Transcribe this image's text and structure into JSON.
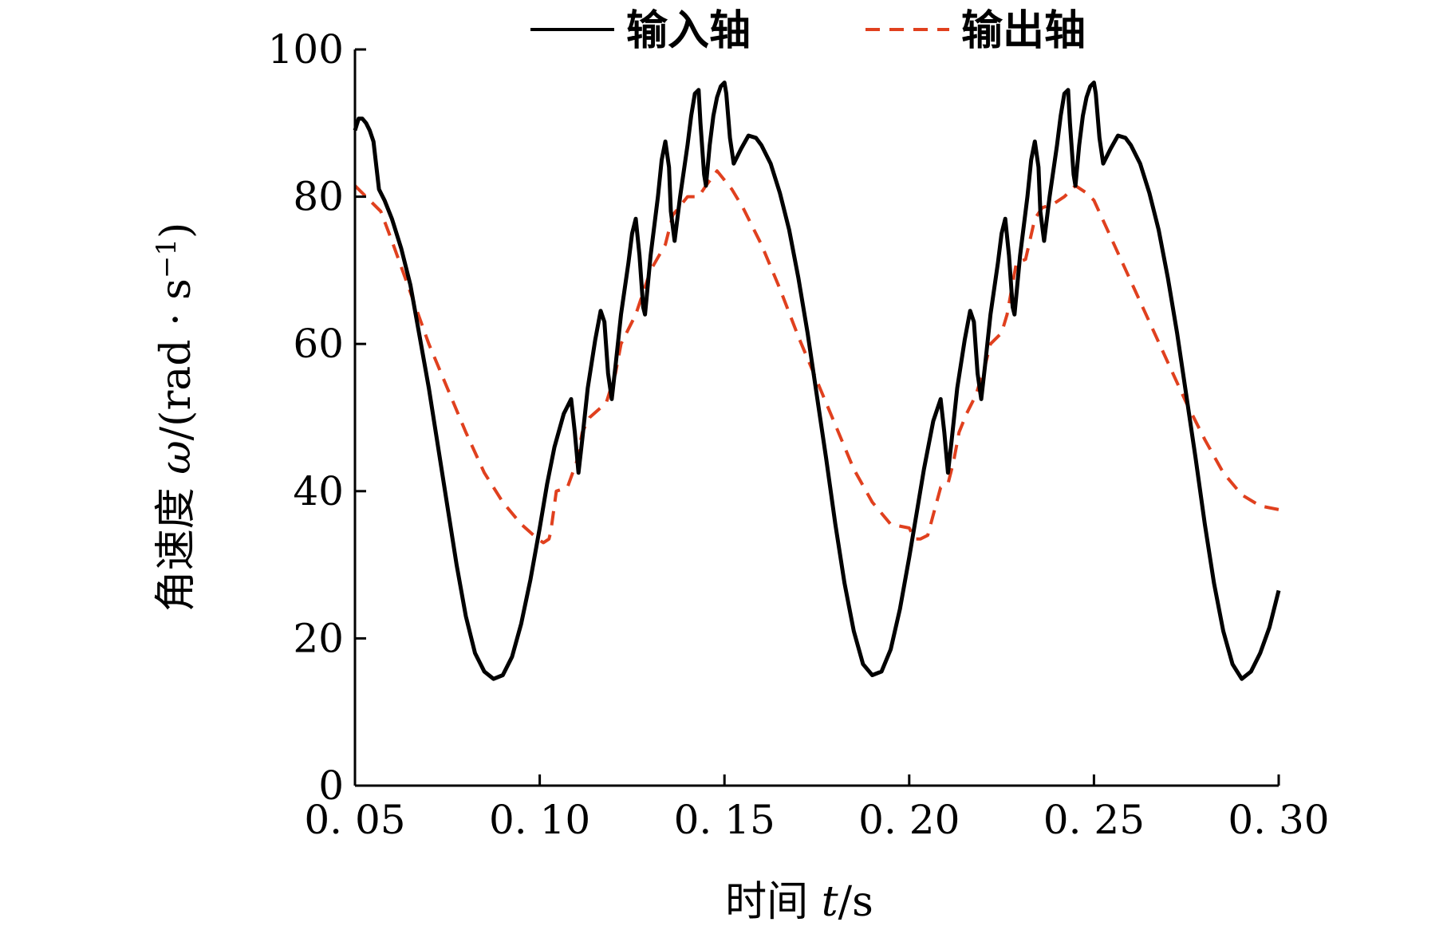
{
  "chart_data": {
    "type": "line",
    "xlabel_prefix": "时间 ",
    "xlabel_var": "t",
    "xlabel_unit": "/s",
    "ylabel_prefix": "角速度 ",
    "ylabel_var": "ω",
    "ylabel_unit": "/(rad · s",
    "ylabel_sup": "−1",
    "ylabel_close": ")",
    "xlim": [
      0.05,
      0.3
    ],
    "ylim": [
      0,
      100
    ],
    "x_ticks": [
      0.05,
      0.1,
      0.15,
      0.2,
      0.25,
      0.3
    ],
    "x_tick_labels": [
      "0. 05",
      "0. 10",
      "0. 15",
      "0. 20",
      "0. 25",
      "0. 30"
    ],
    "y_ticks": [
      0,
      20,
      40,
      60,
      80,
      100
    ],
    "y_tick_labels": [
      "0",
      "20",
      "40",
      "60",
      "80",
      "100"
    ],
    "legend_position": "top-center",
    "series": [
      {
        "name": "输入轴",
        "color": "#000000",
        "style": "solid",
        "points": [
          [
            0.05,
            89.0
          ],
          [
            0.051,
            90.6
          ],
          [
            0.052,
            90.6
          ],
          [
            0.053,
            90.0
          ],
          [
            0.054,
            89.0
          ],
          [
            0.055,
            87.5
          ],
          [
            0.0565,
            81.0
          ],
          [
            0.058,
            79.5
          ],
          [
            0.06,
            77.0
          ],
          [
            0.0625,
            73.0
          ],
          [
            0.065,
            68.0
          ],
          [
            0.0675,
            61.0
          ],
          [
            0.07,
            54.0
          ],
          [
            0.0725,
            46.0
          ],
          [
            0.075,
            38.0
          ],
          [
            0.0775,
            30.0
          ],
          [
            0.08,
            23.0
          ],
          [
            0.0825,
            18.0
          ],
          [
            0.085,
            15.5
          ],
          [
            0.0875,
            14.5
          ],
          [
            0.09,
            15.0
          ],
          [
            0.0925,
            17.5
          ],
          [
            0.095,
            22.0
          ],
          [
            0.0975,
            28.0
          ],
          [
            0.1,
            35.0
          ],
          [
            0.102,
            41.0
          ],
          [
            0.104,
            46.0
          ],
          [
            0.1065,
            50.5
          ],
          [
            0.1085,
            52.5
          ],
          [
            0.1095,
            48.0
          ],
          [
            0.1105,
            42.5
          ],
          [
            0.1115,
            47.0
          ],
          [
            0.113,
            54.0
          ],
          [
            0.115,
            60.5
          ],
          [
            0.1165,
            64.5
          ],
          [
            0.1175,
            63.0
          ],
          [
            0.1185,
            56.0
          ],
          [
            0.1195,
            52.5
          ],
          [
            0.1205,
            57.0
          ],
          [
            0.122,
            64.0
          ],
          [
            0.124,
            71.0
          ],
          [
            0.125,
            75.0
          ],
          [
            0.126,
            77.0
          ],
          [
            0.127,
            72.0
          ],
          [
            0.128,
            65.0
          ],
          [
            0.1285,
            64.0
          ],
          [
            0.13,
            72.0
          ],
          [
            0.132,
            80.0
          ],
          [
            0.133,
            85.0
          ],
          [
            0.134,
            87.5
          ],
          [
            0.135,
            84.0
          ],
          [
            0.1355,
            78.0
          ],
          [
            0.1365,
            74.0
          ],
          [
            0.138,
            80.0
          ],
          [
            0.14,
            87.0
          ],
          [
            0.141,
            91.0
          ],
          [
            0.142,
            94.0
          ],
          [
            0.143,
            94.5
          ],
          [
            0.1435,
            90.0
          ],
          [
            0.1445,
            83.0
          ],
          [
            0.145,
            81.5
          ],
          [
            0.146,
            87.0
          ],
          [
            0.147,
            91.0
          ],
          [
            0.148,
            93.5
          ],
          [
            0.149,
            95.0
          ],
          [
            0.15,
            95.5
          ],
          [
            0.1505,
            94.0
          ],
          [
            0.1515,
            88.0
          ],
          [
            0.1525,
            84.5
          ],
          [
            0.1545,
            86.5
          ],
          [
            0.1565,
            88.3
          ],
          [
            0.1585,
            88.0
          ],
          [
            0.16,
            87.0
          ],
          [
            0.1625,
            84.5
          ],
          [
            0.165,
            80.5
          ],
          [
            0.1675,
            75.5
          ],
          [
            0.17,
            69.0
          ],
          [
            0.1725,
            61.5
          ],
          [
            0.175,
            53.0
          ],
          [
            0.1775,
            44.5
          ],
          [
            0.18,
            35.5
          ],
          [
            0.1825,
            27.5
          ],
          [
            0.185,
            21.0
          ],
          [
            0.1875,
            16.5
          ],
          [
            0.19,
            15.0
          ],
          [
            0.1925,
            15.5
          ],
          [
            0.195,
            18.5
          ],
          [
            0.1975,
            24.0
          ],
          [
            0.2,
            31.0
          ],
          [
            0.202,
            37.0
          ],
          [
            0.204,
            43.0
          ],
          [
            0.2065,
            49.5
          ],
          [
            0.2085,
            52.5
          ],
          [
            0.2095,
            48.0
          ],
          [
            0.2105,
            42.5
          ],
          [
            0.2115,
            47.0
          ],
          [
            0.213,
            54.0
          ],
          [
            0.215,
            60.5
          ],
          [
            0.2165,
            64.5
          ],
          [
            0.2175,
            63.0
          ],
          [
            0.2185,
            56.0
          ],
          [
            0.2195,
            52.5
          ],
          [
            0.2205,
            57.0
          ],
          [
            0.222,
            64.0
          ],
          [
            0.224,
            71.0
          ],
          [
            0.225,
            75.0
          ],
          [
            0.226,
            77.0
          ],
          [
            0.227,
            72.0
          ],
          [
            0.228,
            65.0
          ],
          [
            0.2285,
            64.0
          ],
          [
            0.23,
            72.0
          ],
          [
            0.232,
            80.0
          ],
          [
            0.233,
            85.0
          ],
          [
            0.234,
            87.5
          ],
          [
            0.235,
            84.0
          ],
          [
            0.2355,
            78.0
          ],
          [
            0.2365,
            74.0
          ],
          [
            0.238,
            80.0
          ],
          [
            0.24,
            87.0
          ],
          [
            0.241,
            91.0
          ],
          [
            0.242,
            94.0
          ],
          [
            0.243,
            94.5
          ],
          [
            0.2435,
            90.0
          ],
          [
            0.2445,
            83.0
          ],
          [
            0.245,
            81.5
          ],
          [
            0.246,
            87.0
          ],
          [
            0.247,
            91.0
          ],
          [
            0.248,
            93.5
          ],
          [
            0.249,
            95.0
          ],
          [
            0.25,
            95.5
          ],
          [
            0.2505,
            94.0
          ],
          [
            0.2515,
            88.0
          ],
          [
            0.2525,
            84.5
          ],
          [
            0.2545,
            86.5
          ],
          [
            0.2565,
            88.3
          ],
          [
            0.2585,
            88.0
          ],
          [
            0.26,
            87.0
          ],
          [
            0.2625,
            84.5
          ],
          [
            0.265,
            80.5
          ],
          [
            0.2675,
            75.5
          ],
          [
            0.27,
            69.0
          ],
          [
            0.2725,
            61.5
          ],
          [
            0.275,
            53.0
          ],
          [
            0.2775,
            44.5
          ],
          [
            0.28,
            35.5
          ],
          [
            0.2825,
            27.5
          ],
          [
            0.285,
            21.0
          ],
          [
            0.2875,
            16.5
          ],
          [
            0.29,
            14.5
          ],
          [
            0.2925,
            15.5
          ],
          [
            0.295,
            18.0
          ],
          [
            0.2975,
            21.5
          ],
          [
            0.3,
            26.5
          ]
        ]
      },
      {
        "name": "输出轴",
        "color": "#e0401e",
        "style": "dashed",
        "points": [
          [
            0.05,
            81.5
          ],
          [
            0.053,
            80.0
          ],
          [
            0.057,
            78.0
          ],
          [
            0.06,
            74.0
          ],
          [
            0.065,
            67.0
          ],
          [
            0.07,
            60.0
          ],
          [
            0.075,
            54.0
          ],
          [
            0.08,
            48.0
          ],
          [
            0.085,
            42.5
          ],
          [
            0.09,
            38.5
          ],
          [
            0.095,
            35.5
          ],
          [
            0.0995,
            33.5
          ],
          [
            0.101,
            33.0
          ],
          [
            0.1025,
            33.5
          ],
          [
            0.103,
            34.5
          ],
          [
            0.1045,
            40.0
          ],
          [
            0.1075,
            40.5
          ],
          [
            0.11,
            44.0
          ],
          [
            0.1115,
            48.0
          ],
          [
            0.1135,
            50.0
          ],
          [
            0.118,
            52.0
          ],
          [
            0.1205,
            56.0
          ],
          [
            0.122,
            60.0
          ],
          [
            0.126,
            64.0
          ],
          [
            0.13,
            70.0
          ],
          [
            0.134,
            73.5
          ],
          [
            0.136,
            77.5
          ],
          [
            0.14,
            80.0
          ],
          [
            0.143,
            80.0
          ],
          [
            0.145,
            81.5
          ],
          [
            0.148,
            83.5
          ],
          [
            0.152,
            81.0
          ],
          [
            0.155,
            78.5
          ],
          [
            0.16,
            73.5
          ],
          [
            0.165,
            67.5
          ],
          [
            0.17,
            61.0
          ],
          [
            0.175,
            55.0
          ],
          [
            0.18,
            49.0
          ],
          [
            0.185,
            43.0
          ],
          [
            0.19,
            38.5
          ],
          [
            0.195,
            35.5
          ],
          [
            0.2,
            35.0
          ],
          [
            0.2015,
            33.5
          ],
          [
            0.203,
            33.5
          ],
          [
            0.205,
            34.0
          ],
          [
            0.2085,
            40.5
          ],
          [
            0.2105,
            41.0
          ],
          [
            0.212,
            44.0
          ],
          [
            0.2135,
            48.0
          ],
          [
            0.2155,
            50.5
          ],
          [
            0.218,
            53.0
          ],
          [
            0.2205,
            57.0
          ],
          [
            0.222,
            60.0
          ],
          [
            0.225,
            61.5
          ],
          [
            0.2265,
            64.0
          ],
          [
            0.229,
            71.0
          ],
          [
            0.2315,
            71.5
          ],
          [
            0.234,
            77.0
          ],
          [
            0.236,
            78.5
          ],
          [
            0.239,
            79.0
          ],
          [
            0.242,
            80.0
          ],
          [
            0.245,
            81.5
          ],
          [
            0.248,
            80.5
          ],
          [
            0.25,
            79.5
          ],
          [
            0.255,
            74.0
          ],
          [
            0.26,
            68.5
          ],
          [
            0.265,
            63.0
          ],
          [
            0.27,
            57.5
          ],
          [
            0.275,
            52.0
          ],
          [
            0.28,
            47.0
          ],
          [
            0.285,
            42.5
          ],
          [
            0.29,
            39.5
          ],
          [
            0.295,
            38.0
          ],
          [
            0.3,
            37.5
          ]
        ]
      }
    ]
  }
}
